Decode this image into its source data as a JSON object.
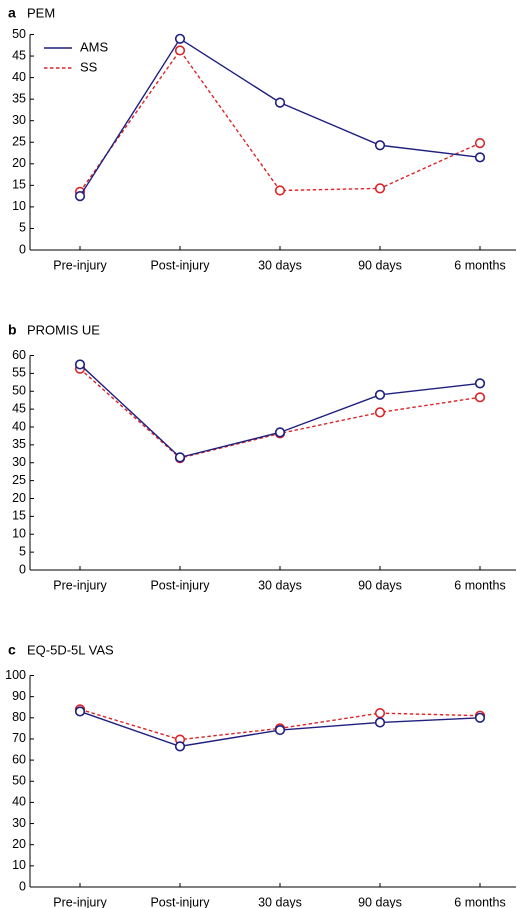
{
  "colors": {
    "ams": "#1f1f80",
    "ss": "#d9262a"
  },
  "legend": [
    {
      "name": "AMS",
      "style": "solid",
      "color": "#1f1f80"
    },
    {
      "name": "SS",
      "style": "dashed",
      "color": "#d9262a"
    }
  ],
  "chart_data": [
    {
      "type": "line",
      "letter": "a",
      "title": "PEM",
      "categories": [
        "Pre-injury",
        "Post-injury",
        "30 days",
        "90 days",
        "6 months"
      ],
      "ylim": [
        0,
        50
      ],
      "yticks": [
        0,
        5,
        10,
        15,
        20,
        25,
        30,
        35,
        40,
        45,
        50
      ],
      "grid": false,
      "legend_position": "top-left",
      "series": [
        {
          "name": "AMS",
          "values": [
            12.5,
            49,
            34.2,
            24.3,
            21.5
          ]
        },
        {
          "name": "SS",
          "values": [
            13.5,
            46.3,
            13.8,
            14.3,
            24.8
          ]
        }
      ]
    },
    {
      "type": "line",
      "letter": "b",
      "title": "PROMIS UE",
      "categories": [
        "Pre-injury",
        "Post-injury",
        "30 days",
        "90 days",
        "6 months"
      ],
      "ylim": [
        0,
        60
      ],
      "yticks": [
        0,
        5,
        10,
        15,
        20,
        25,
        30,
        35,
        40,
        45,
        50,
        55,
        60
      ],
      "grid": false,
      "series": [
        {
          "name": "AMS",
          "values": [
            57.5,
            31.5,
            38.5,
            49,
            52.2
          ]
        },
        {
          "name": "SS",
          "values": [
            56.3,
            31.3,
            38.2,
            44.1,
            48.3
          ]
        }
      ]
    },
    {
      "type": "line",
      "letter": "c",
      "title": "EQ-5D-5L VAS",
      "categories": [
        "Pre-injury",
        "Post-injury",
        "30 days",
        "90 days",
        "6 months"
      ],
      "ylim": [
        0,
        100
      ],
      "yticks": [
        0,
        10,
        20,
        30,
        40,
        50,
        60,
        70,
        80,
        90,
        100
      ],
      "grid": false,
      "series": [
        {
          "name": "AMS",
          "values": [
            83,
            66.5,
            74.2,
            77.8,
            80
          ]
        },
        {
          "name": "SS",
          "values": [
            84,
            69.7,
            75,
            82.2,
            81
          ]
        }
      ]
    }
  ]
}
